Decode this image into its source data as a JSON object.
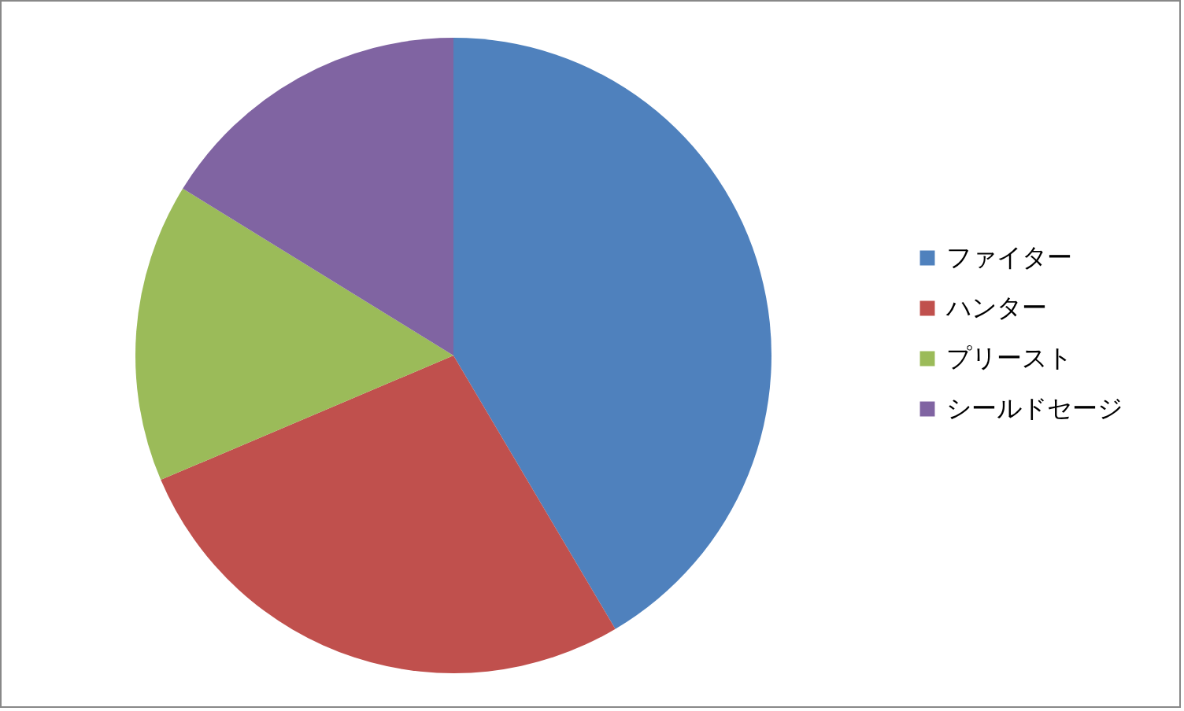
{
  "chart_data": {
    "type": "pie",
    "categories": [
      "ファイター",
      "ハンター",
      "プリースト",
      "シールドセージ"
    ],
    "values": [
      41.5,
      27.1,
      15.2,
      16.2
    ],
    "colors": [
      "#4f81bd",
      "#c0504d",
      "#9bbb59",
      "#8064a2"
    ],
    "legend": "right"
  }
}
